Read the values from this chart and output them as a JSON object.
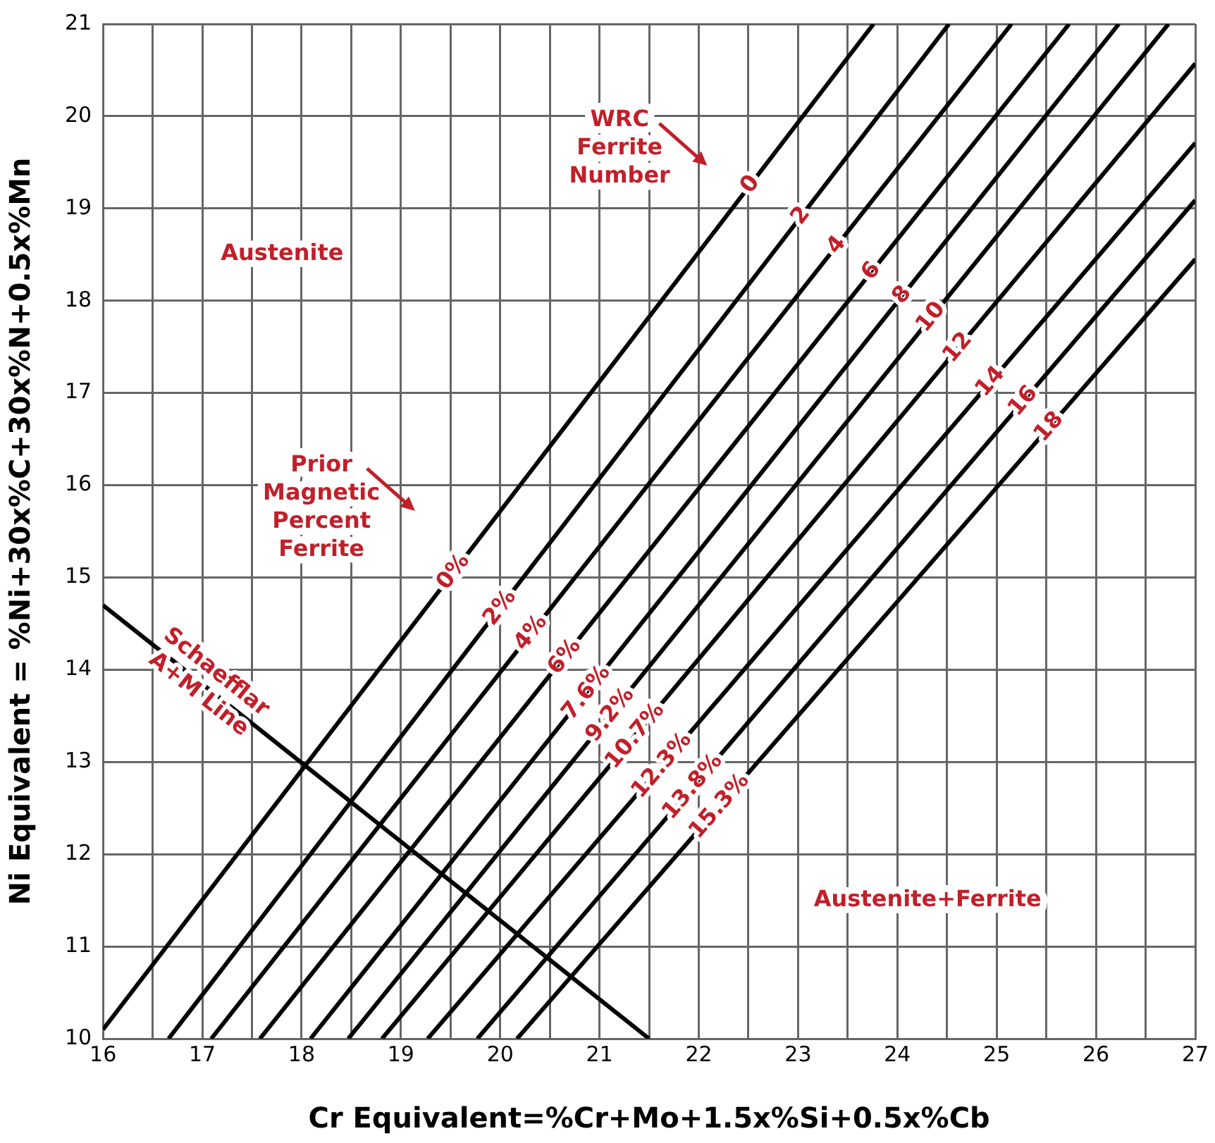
{
  "chart_data": {
    "type": "line",
    "xlabel": "Cr Equivalent=%Cr+Mo+1.5x%Si+0.5x%Cb",
    "ylabel": "Ni Equivalent = %Ni+30x%C+30x%N+0.5x%Mn",
    "xlim": [
      16,
      27
    ],
    "ylim": [
      10,
      21
    ],
    "xticks": [
      16,
      {
        "value": 16.5,
        "label": null
      },
      17,
      {
        "value": 17.5,
        "label": null
      },
      18,
      {
        "value": 18.5,
        "label": null
      },
      19,
      {
        "value": 19.5,
        "label": null
      },
      20,
      {
        "value": 20.5,
        "label": null
      },
      21,
      {
        "value": 21.5,
        "label": null
      },
      22,
      {
        "value": 22.5,
        "label": null
      },
      23,
      {
        "value": 23.5,
        "label": null
      },
      24,
      {
        "value": 24.5,
        "label": null
      },
      25,
      {
        "value": 25.5,
        "label": null
      },
      26,
      {
        "value": 26.5,
        "label": null
      },
      27
    ],
    "yticks": [
      10,
      11,
      12,
      13,
      14,
      15,
      16,
      17,
      18,
      19,
      20,
      21
    ],
    "grid": true,
    "legend": false,
    "marker": "none",
    "line_style": "solid",
    "series": [
      {
        "color": "#000000",
        "x": [
          16.0,
          23.76
        ],
        "values": [
          10.1,
          21
        ]
      },
      {
        "color": "#000000",
        "x": [
          16.66,
          24.52
        ],
        "values": [
          10,
          21
        ]
      },
      {
        "color": "#000000",
        "x": [
          17.09,
          25.15
        ],
        "values": [
          10,
          21
        ]
      },
      {
        "color": "#000000",
        "x": [
          17.58,
          25.73
        ],
        "values": [
          10,
          21
        ]
      },
      {
        "color": "#000000",
        "x": [
          18.09,
          26.23
        ],
        "values": [
          10,
          21
        ]
      },
      {
        "color": "#000000",
        "x": [
          18.47,
          26.73
        ],
        "values": [
          10,
          21
        ]
      },
      {
        "color": "#000000",
        "x": [
          18.81,
          27
        ],
        "values": [
          10,
          20.57
        ]
      },
      {
        "color": "#000000",
        "x": [
          19.27,
          27
        ],
        "values": [
          10,
          19.71
        ]
      },
      {
        "color": "#000000",
        "x": [
          19.77,
          27
        ],
        "values": [
          10,
          19.09
        ]
      },
      {
        "color": "#000000",
        "x": [
          20.17,
          27
        ],
        "values": [
          10,
          18.45
        ]
      },
      {
        "color": "#000000",
        "x": [
          16,
          21.5
        ],
        "values": [
          14.7,
          10
        ]
      }
    ],
    "annotations": [
      "Austenite",
      "Austenite+Ferrite",
      "WRC Ferrite Number",
      "Prior Magnetic Percent Ferrite",
      {
        "text": "Schaefflar A+M Line",
        "x": 17.05,
        "y": 13.85
      },
      {
        "text": "0",
        "x": 22.52,
        "y": 19.26
      },
      {
        "text": "2",
        "x": 23.03,
        "y": 18.92
      },
      {
        "text": "4",
        "x": 23.39,
        "y": 18.6
      },
      {
        "text": "6",
        "x": 23.74,
        "y": 18.32
      },
      {
        "text": "8",
        "x": 24.05,
        "y": 18.06
      },
      {
        "text": "10",
        "x": 24.34,
        "y": 17.82
      },
      {
        "text": "12",
        "x": 24.61,
        "y": 17.49
      },
      {
        "text": "14",
        "x": 24.94,
        "y": 17.12
      },
      {
        "text": "16",
        "x": 25.27,
        "y": 16.91
      },
      {
        "text": "18",
        "x": 25.53,
        "y": 16.63
      },
      {
        "text": "0%",
        "x": 19.53,
        "y": 15.06
      },
      {
        "text": "2%",
        "x": 20.0,
        "y": 14.67
      },
      {
        "text": "4%",
        "x": 20.31,
        "y": 14.4
      },
      {
        "text": "6%",
        "x": 20.65,
        "y": 14.14
      },
      {
        "text": "7.6%",
        "x": 20.87,
        "y": 13.75
      },
      {
        "text": "9.2%",
        "x": 21.11,
        "y": 13.51
      },
      {
        "text": "10.7%",
        "x": 21.36,
        "y": 13.28
      },
      {
        "text": "12.3%",
        "x": 21.63,
        "y": 12.96
      },
      {
        "text": "13.8%",
        "x": 21.94,
        "y": 12.73
      },
      {
        "text": "15.3%",
        "x": 22.21,
        "y": 12.52
      }
    ]
  }
}
